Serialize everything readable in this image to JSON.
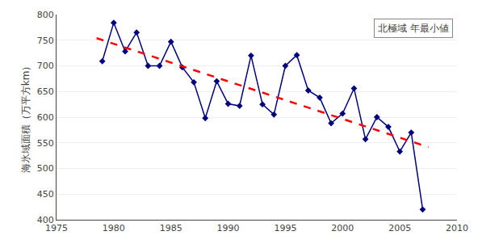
{
  "chart_data": {
    "type": "line",
    "ylabel": "海氷域面積（万平方km）",
    "annotations": [
      "北極域 年最小値"
    ],
    "series": [
      {
        "type": "line",
        "color": "#000080",
        "marker": "diamond",
        "line_style": "solid",
        "x": [
          1979,
          1980,
          1981,
          1982,
          1983,
          1984,
          1985,
          1986,
          1987,
          1988,
          1989,
          1990,
          1991,
          1992,
          1993,
          1994,
          1995,
          1996,
          1997,
          1998,
          1999,
          2000,
          2001,
          2002,
          2003,
          2004,
          2005,
          2006,
          2007
        ],
        "values": [
          709,
          784,
          728,
          765,
          700,
          700,
          747,
          697,
          668,
          598,
          670,
          626,
          622,
          720,
          625,
          605,
          700,
          721,
          652,
          638,
          588,
          607,
          656,
          557,
          600,
          581,
          533,
          570,
          420
        ]
      },
      {
        "type": "line",
        "color": "#FF0000",
        "marker": "none",
        "line_style": "dashed",
        "x": [
          1978.5,
          2007.5
        ],
        "values": [
          753.99187,
          541.6633
        ]
      }
    ],
    "xlim": [
      1975,
      2010
    ],
    "xticks": [
      1975,
      1980,
      1985,
      1990,
      1995,
      2000,
      2005,
      2010
    ],
    "ylim": [
      400,
      800
    ],
    "yticks": [
      400,
      450,
      500,
      550,
      600,
      650,
      700,
      750,
      800
    ],
    "grid": "y"
  }
}
